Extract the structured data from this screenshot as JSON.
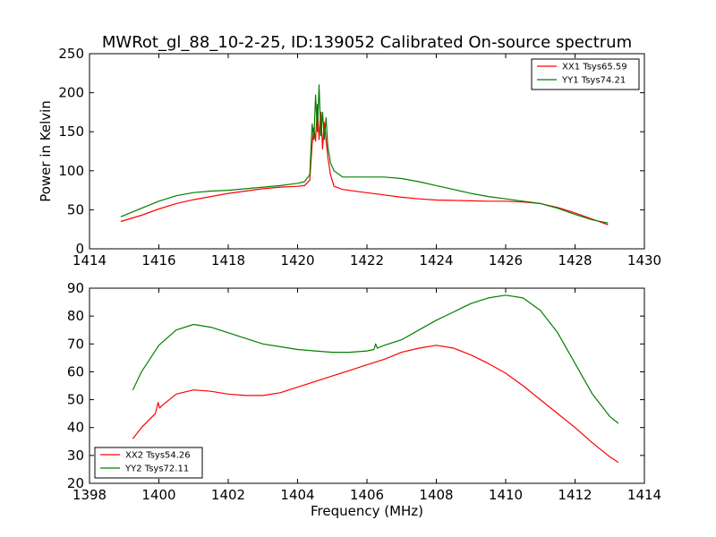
{
  "chart_data": [
    {
      "type": "line",
      "title": "MWRot_gl_88_10-2-25, ID:139052 Calibrated On-source spectrum",
      "xlabel": "",
      "ylabel": "Power in Kelvin",
      "xlim": [
        1414,
        1430
      ],
      "ylim": [
        0,
        250
      ],
      "xticks": [
        "1414",
        "1416",
        "1418",
        "1420",
        "1422",
        "1424",
        "1426",
        "1428",
        "1430"
      ],
      "yticks": [
        "0",
        "50",
        "100",
        "150",
        "200",
        "250"
      ],
      "legend_position": "top-right",
      "series": [
        {
          "name": "XX1 Tsys65.59",
          "color": "#ff0000",
          "x": [
            1414.9,
            1415.5,
            1416,
            1416.5,
            1417,
            1417.5,
            1418,
            1418.5,
            1419,
            1419.5,
            1420,
            1420.2,
            1420.35,
            1420.42,
            1420.47,
            1420.52,
            1420.57,
            1420.62,
            1420.67,
            1420.72,
            1420.77,
            1420.82,
            1420.87,
            1420.95,
            1421.05,
            1421.3,
            1421.8,
            1422.5,
            1423,
            1423.5,
            1424,
            1424.5,
            1425,
            1425.5,
            1426,
            1426.5,
            1427,
            1427.5,
            1428,
            1428.5,
            1428.95
          ],
          "y": [
            35,
            43,
            51,
            58,
            63,
            67,
            71,
            74,
            77,
            79,
            80,
            81,
            88,
            135,
            155,
            138,
            185,
            140,
            175,
            128,
            162,
            140,
            118,
            95,
            80,
            76,
            73,
            69,
            66,
            64,
            62.5,
            62,
            61.5,
            61,
            61,
            60,
            58,
            53,
            46,
            38,
            31
          ]
        },
        {
          "name": "YY1 Tsys74.21",
          "color": "#008000",
          "x": [
            1414.9,
            1415.5,
            1416,
            1416.5,
            1417,
            1417.5,
            1418,
            1418.5,
            1419,
            1419.5,
            1420,
            1420.2,
            1420.35,
            1420.42,
            1420.47,
            1420.52,
            1420.57,
            1420.62,
            1420.67,
            1420.72,
            1420.77,
            1420.82,
            1420.87,
            1420.95,
            1421.05,
            1421.3,
            1421.8,
            1422.5,
            1423,
            1423.5,
            1424,
            1424.5,
            1425,
            1425.5,
            1426,
            1426.5,
            1427,
            1427.5,
            1428,
            1428.5,
            1428.95
          ],
          "y": [
            41,
            52,
            61,
            68,
            72,
            74,
            75,
            77,
            79,
            81,
            84,
            86,
            95,
            160,
            140,
            197,
            150,
            210,
            145,
            175,
            140,
            168,
            132,
            110,
            100,
            92,
            92,
            92,
            90,
            86,
            81,
            76,
            71,
            67,
            64,
            61,
            58,
            52,
            44,
            37,
            33
          ]
        }
      ]
    },
    {
      "type": "line",
      "title": "",
      "xlabel": "Frequency (MHz)",
      "ylabel": "",
      "xlim": [
        1398,
        1414
      ],
      "ylim": [
        20,
        90
      ],
      "xticks": [
        "1398",
        "1400",
        "1402",
        "1404",
        "1406",
        "1408",
        "1410",
        "1412",
        "1414"
      ],
      "yticks": [
        "20",
        "30",
        "40",
        "50",
        "60",
        "70",
        "80",
        "90"
      ],
      "legend_position": "bottom-left",
      "series": [
        {
          "name": "XX2 Tsys54.26",
          "color": "#ff0000",
          "x": [
            1399.25,
            1399.5,
            1399.9,
            1399.98,
            1400.02,
            1400.1,
            1400.5,
            1401,
            1401.5,
            1402,
            1402.5,
            1403,
            1403.5,
            1404,
            1404.5,
            1405,
            1405.5,
            1406,
            1406.5,
            1407,
            1407.5,
            1408,
            1408.5,
            1409,
            1409.5,
            1410,
            1410.5,
            1411,
            1411.5,
            1412,
            1412.5,
            1413,
            1413.25
          ],
          "y": [
            36,
            40,
            45,
            49,
            47,
            48,
            52,
            53.5,
            53,
            52,
            51.5,
            51.5,
            52.5,
            54.5,
            56.5,
            58.5,
            60.5,
            62.5,
            64.5,
            67,
            68.5,
            69.5,
            68.5,
            66,
            63,
            59.5,
            55,
            50,
            45,
            40,
            34.5,
            29.5,
            27.5
          ]
        },
        {
          "name": "YY2 Tsys72.11",
          "color": "#008000",
          "x": [
            1399.25,
            1399.5,
            1400,
            1400.5,
            1401,
            1401.5,
            1402,
            1402.5,
            1403,
            1403.5,
            1404,
            1404.5,
            1405,
            1405.5,
            1406,
            1406.2,
            1406.25,
            1406.3,
            1406.5,
            1407,
            1407.5,
            1408,
            1408.5,
            1409,
            1409.5,
            1410,
            1410.5,
            1411,
            1411.5,
            1412,
            1412.5,
            1413,
            1413.25
          ],
          "y": [
            53.5,
            60,
            69.5,
            75,
            77,
            76,
            74,
            72,
            70,
            69,
            68,
            67.5,
            67,
            67,
            67.5,
            68,
            70,
            68.5,
            69.5,
            71.5,
            75,
            78.5,
            81.5,
            84.5,
            86.5,
            87.5,
            86.5,
            82,
            74,
            63,
            52,
            44,
            41.5
          ]
        }
      ]
    }
  ]
}
